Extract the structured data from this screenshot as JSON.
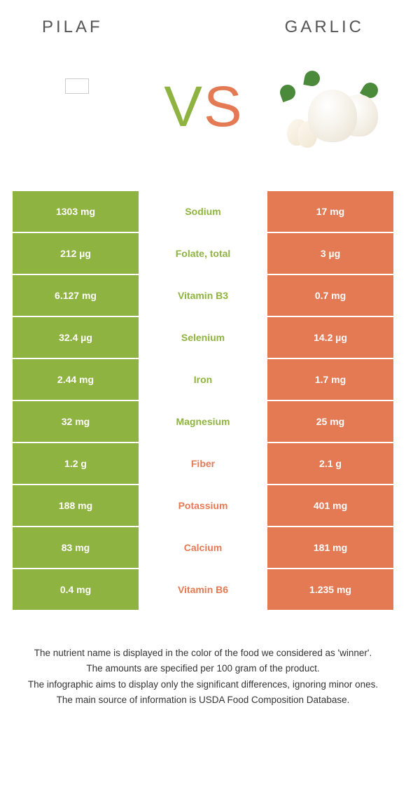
{
  "colors": {
    "left": "#8fb340",
    "right": "#e47a54",
    "mid_left_text": "#8fb340",
    "mid_right_text": "#e47a54",
    "vs_v": "#8fb340",
    "vs_s": "#e47a54"
  },
  "header": {
    "left_title": "PILAF",
    "right_title": "GARLIC"
  },
  "vs": {
    "v": "V",
    "s": "S"
  },
  "rows": [
    {
      "left": "1303 mg",
      "label": "Sodium",
      "right": "17 mg",
      "winner": "left"
    },
    {
      "left": "212 µg",
      "label": "Folate, total",
      "right": "3 µg",
      "winner": "left"
    },
    {
      "left": "6.127 mg",
      "label": "Vitamin B3",
      "right": "0.7 mg",
      "winner": "left"
    },
    {
      "left": "32.4 µg",
      "label": "Selenium",
      "right": "14.2 µg",
      "winner": "left"
    },
    {
      "left": "2.44 mg",
      "label": "Iron",
      "right": "1.7 mg",
      "winner": "left"
    },
    {
      "left": "32 mg",
      "label": "Magnesium",
      "right": "25 mg",
      "winner": "left"
    },
    {
      "left": "1.2 g",
      "label": "Fiber",
      "right": "2.1 g",
      "winner": "right"
    },
    {
      "left": "188 mg",
      "label": "Potassium",
      "right": "401 mg",
      "winner": "right"
    },
    {
      "left": "83 mg",
      "label": "Calcium",
      "right": "181 mg",
      "winner": "right"
    },
    {
      "left": "0.4 mg",
      "label": "Vitamin B6",
      "right": "1.235 mg",
      "winner": "right"
    }
  ],
  "footnotes": {
    "line1": "The nutrient name is displayed in the color of the food we considered as 'winner'.",
    "line2": "The amounts are specified per 100 gram of the product.",
    "line3": "The infographic aims to display only the significant differences, ignoring minor ones.",
    "line4": "The main source of information is USDA Food Composition Database."
  }
}
